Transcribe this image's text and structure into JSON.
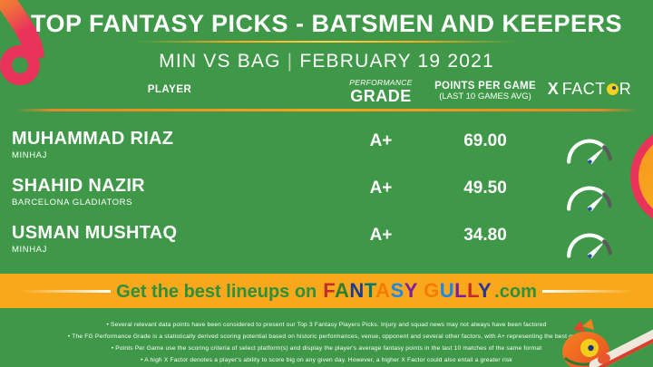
{
  "title": "TOP FANTASY PICKS - BATSMEN AND KEEPERS",
  "subtitle": {
    "match": "MIN VS BAG",
    "separator": "|",
    "date": "FEBRUARY 19 2021"
  },
  "table": {
    "headers": {
      "player": "PLAYER",
      "grade_label_top": "PERFORMANCE",
      "grade_label": "GRADE",
      "points_label": "POINTS PER GAME",
      "points_sublabel": "(LAST 10 GAMES AVG)",
      "xfactor_prefix": "X",
      "xfactor_part1": "FACT",
      "xfactor_part2": "R"
    },
    "rows": [
      {
        "name": "MUHAMMAD RIAZ",
        "team": "MINHAJ",
        "grade": "A+",
        "points": "69.00",
        "xfactor_icon": "gauge-high"
      },
      {
        "name": "SHAHID NAZIR",
        "team": "BARCELONA GLADIATORS",
        "grade": "A+",
        "points": "49.50",
        "xfactor_icon": "gauge-high"
      },
      {
        "name": "USMAN MUSHTAQ",
        "team": "MINHAJ",
        "grade": "A+",
        "points": "34.80",
        "xfactor_icon": "gauge-high"
      }
    ]
  },
  "banner": {
    "prefix": "Get the best lineups on",
    "brand": "FANTASY GULLY",
    "suffix": ".com",
    "brand_letter_colors": [
      "#c62a2a",
      "#2e7d32",
      "#1a3c8f",
      "#00796b",
      "#f57c00",
      "#1e88e5",
      "#7b1fa2",
      "#000000",
      "#f57c00",
      "#1e88e5",
      "#7b1fa2",
      "#c62a2a",
      "#283593"
    ]
  },
  "notes": [
    "• Several relevant data points have been considered to present our Top 3 Fantasy Players Picks. Injury and squad news may not always have been factored",
    "• The FG Performance Grade is a statistically derived scoring potential based on historic performances, venue, opponent and several other factors, with A+ representing the best grade",
    "• Points Per Game use the scoring criteria of select platform(s) and display the player's average fantasy points in the last 10 matches of the same format",
    "• A high X Factor denotes a player's ability to score big on any given day. However, a higher X Factor could also entail a greater risk"
  ],
  "colors": {
    "background": "#3e9847",
    "banner_background": "#f9a81b",
    "gold_rule": "#f6a41f",
    "accent_pink": "#e9335b",
    "accent_orange": "#f5941d",
    "banner_text_green": "#2e8f3d",
    "xfactor_dot_yellow": "#f3d019",
    "gauge_pivot_blue": "#1f4fa8"
  },
  "icons": {
    "xfactor_o": "target-dot-icon",
    "gauge": "speedometer-gauge-icon",
    "mascot": "chameleon-with-cricket-bat",
    "corner": "ribbon-swirl"
  }
}
